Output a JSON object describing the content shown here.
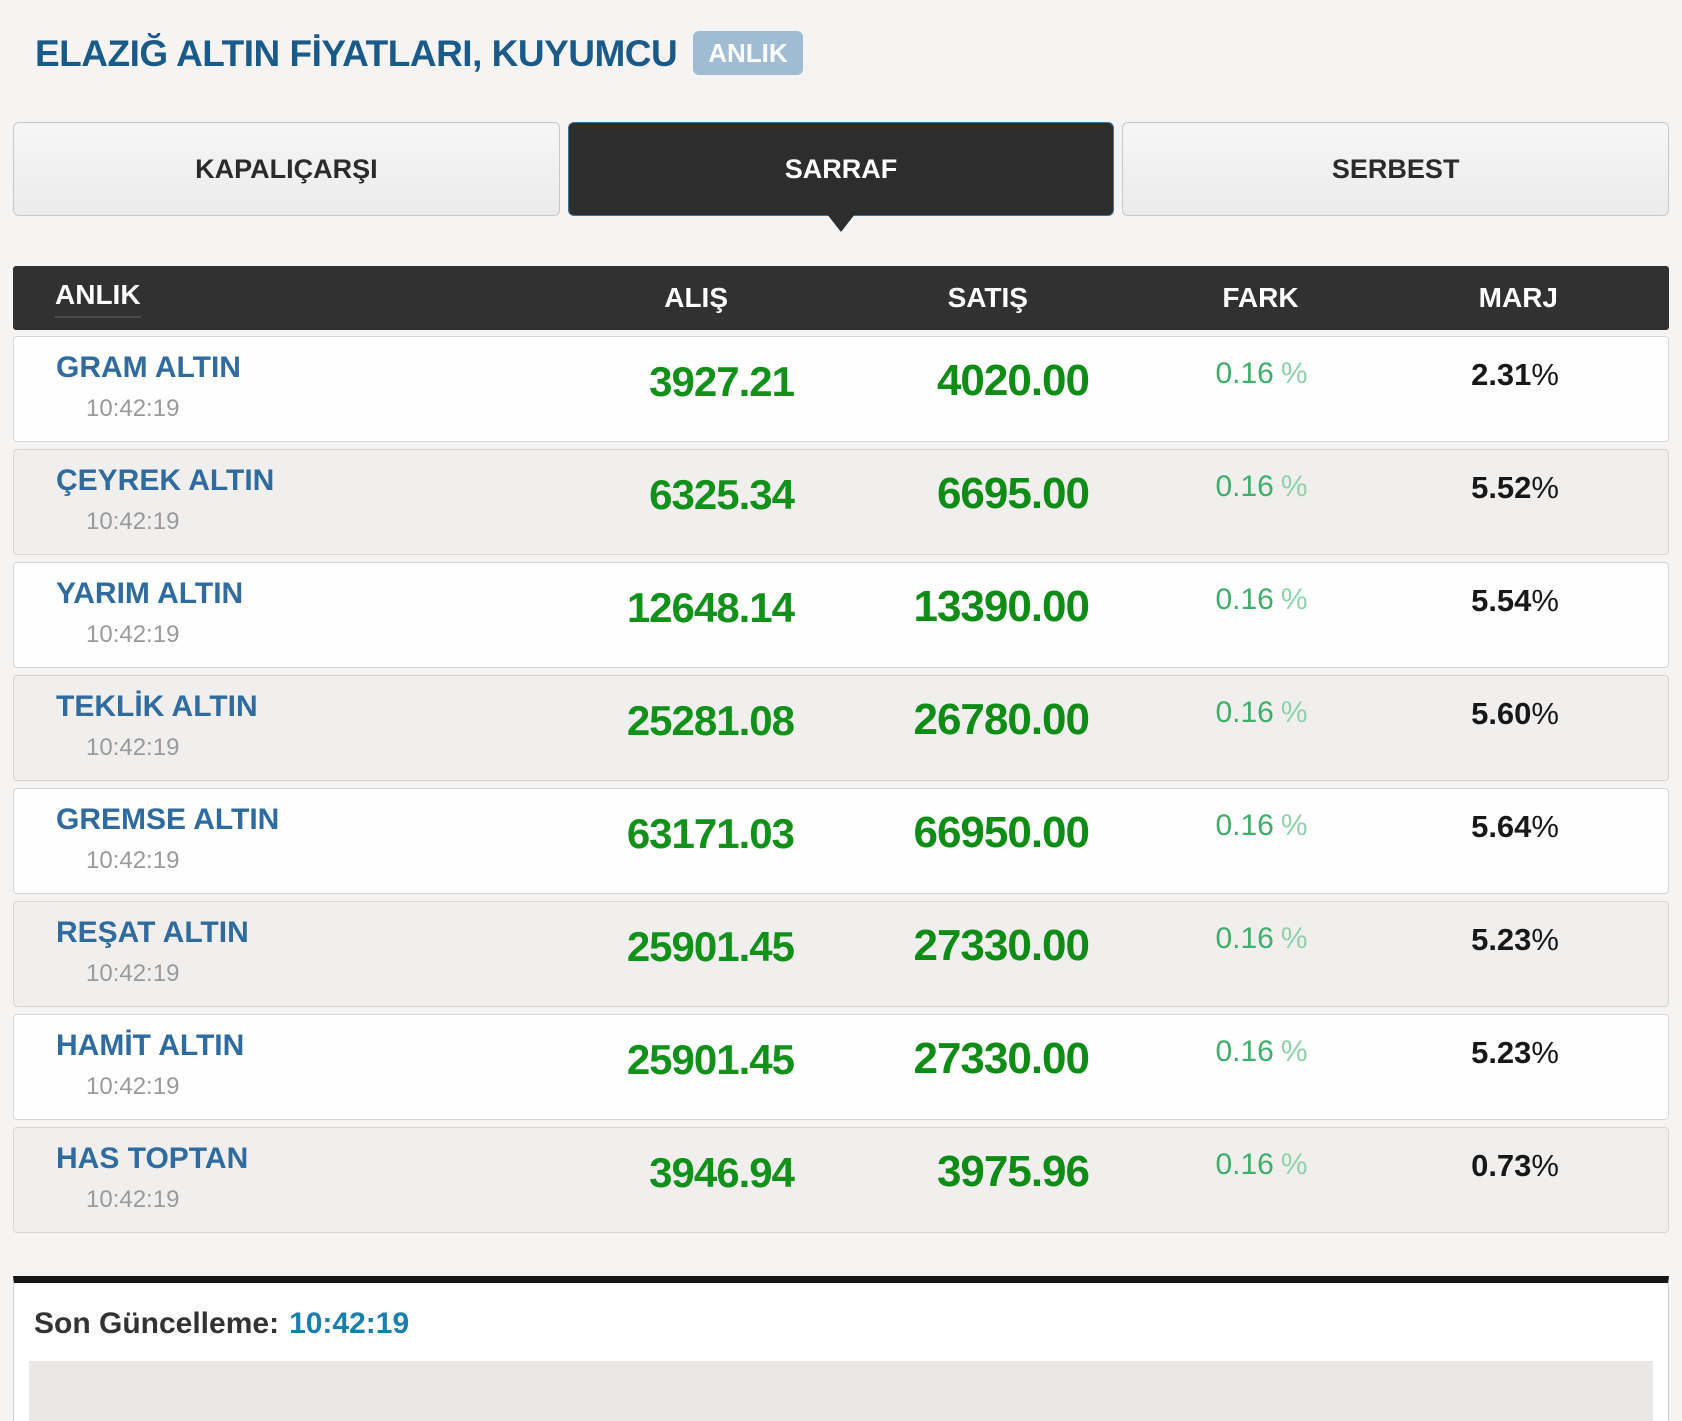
{
  "page": {
    "title": "ELAZIĞ ALTIN FİYATLARI, KUYUMCU",
    "badge": "ANLIK"
  },
  "tabs": [
    {
      "label": "KAPALIÇARŞI",
      "active": false
    },
    {
      "label": "SARRAF",
      "active": true
    },
    {
      "label": "SERBEST",
      "active": false
    }
  ],
  "table": {
    "headers": [
      "ANLIK",
      "ALIŞ",
      "SATIŞ",
      "FARK",
      "MARJ"
    ],
    "rows": [
      {
        "name": "GRAM ALTIN",
        "time": "10:42:19",
        "alis": "3927.21",
        "satis": "4020.00",
        "fark": "0.16",
        "fark_sym": "%",
        "marj": "2.31",
        "marj_sym": "%"
      },
      {
        "name": "ÇEYREK ALTIN",
        "time": "10:42:19",
        "alis": "6325.34",
        "satis": "6695.00",
        "fark": "0.16",
        "fark_sym": "%",
        "marj": "5.52",
        "marj_sym": "%"
      },
      {
        "name": "YARIM ALTIN",
        "time": "10:42:19",
        "alis": "12648.14",
        "satis": "13390.00",
        "fark": "0.16",
        "fark_sym": "%",
        "marj": "5.54",
        "marj_sym": "%"
      },
      {
        "name": "TEKLİK ALTIN",
        "time": "10:42:19",
        "alis": "25281.08",
        "satis": "26780.00",
        "fark": "0.16",
        "fark_sym": "%",
        "marj": "5.60",
        "marj_sym": "%"
      },
      {
        "name": "GREMSE ALTIN",
        "time": "10:42:19",
        "alis": "63171.03",
        "satis": "66950.00",
        "fark": "0.16",
        "fark_sym": "%",
        "marj": "5.64",
        "marj_sym": "%"
      },
      {
        "name": "REŞAT ALTIN",
        "time": "10:42:19",
        "alis": "25901.45",
        "satis": "27330.00",
        "fark": "0.16",
        "fark_sym": "%",
        "marj": "5.23",
        "marj_sym": "%"
      },
      {
        "name": "HAMİT ALTIN",
        "time": "10:42:19",
        "alis": "25901.45",
        "satis": "27330.00",
        "fark": "0.16",
        "fark_sym": "%",
        "marj": "5.23",
        "marj_sym": "%"
      },
      {
        "name": "HAS TOPTAN",
        "time": "10:42:19",
        "alis": "3946.94",
        "satis": "3975.96",
        "fark": "0.16",
        "fark_sym": "%",
        "marj": "0.73",
        "marj_sym": "%"
      }
    ]
  },
  "footer": {
    "label": "Son Güncelleme:",
    "time": "10:42:19"
  },
  "colors": {
    "title_blue": "#1a5a88",
    "badge_bg": "#a0bcd4",
    "active_tab_bg": "#2d2d2d",
    "active_tab_border": "#39739f",
    "header_bg": "#313131",
    "instrument_blue": "#2f6b9f",
    "buy_green": "#12911a",
    "sell_green": "#0e8c16",
    "fark_green": "#3fae68",
    "marj_dark": "#181818",
    "timestamp_gray": "#9a9a9a",
    "footer_time_blue": "#1b7fae"
  }
}
